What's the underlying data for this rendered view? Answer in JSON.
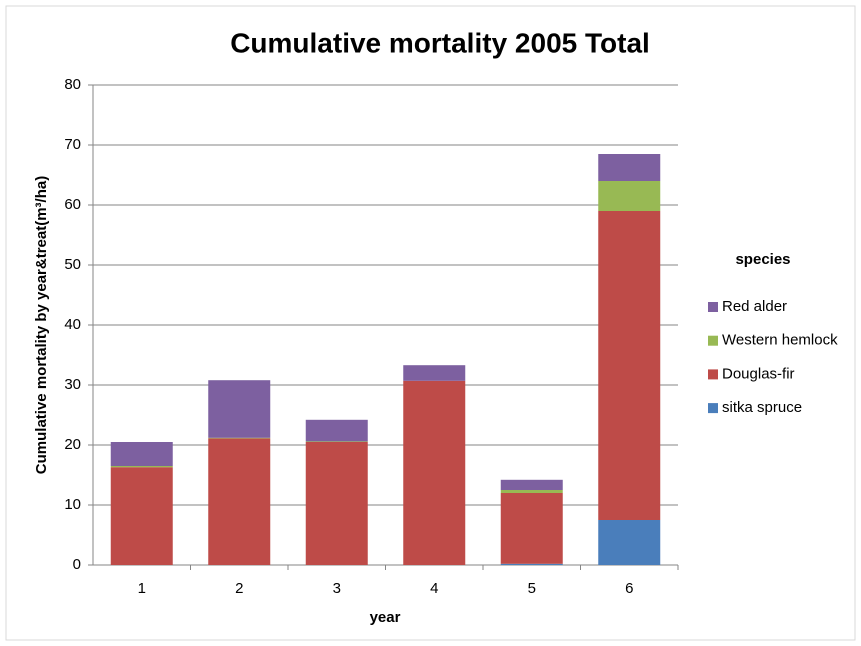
{
  "chart_data": {
    "type": "stacked_bar",
    "title": "Cumulative mortality 2005 Total",
    "x_label": "year",
    "y_label": "Cumulative mortality by year&treat(m³/ha)",
    "legend_title": "species",
    "legend": "right",
    "categories": [
      "1",
      "2",
      "3",
      "4",
      "5",
      "6"
    ],
    "series": [
      {
        "name": "sitka spruce",
        "color": "#4a7ebb",
        "values": [
          0,
          0,
          0,
          0,
          0.2,
          7.5
        ]
      },
      {
        "name": "Douglas-fir",
        "color": "#be4b48",
        "values": [
          16.3,
          21.1,
          20.5,
          30.7,
          11.8,
          51.5
        ]
      },
      {
        "name": "Western hemlock",
        "color": "#98b954",
        "values": [
          0.2,
          0.1,
          0.1,
          0,
          0.5,
          5
        ]
      },
      {
        "name": "Red alder",
        "color": "#7d60a0",
        "values": [
          4,
          9.6,
          3.6,
          2.6,
          1.7,
          4.5
        ]
      }
    ],
    "ylim": [
      0,
      80
    ],
    "yticks": [
      0,
      10,
      20,
      30,
      40,
      50,
      60,
      70,
      80
    ],
    "grid": true
  }
}
